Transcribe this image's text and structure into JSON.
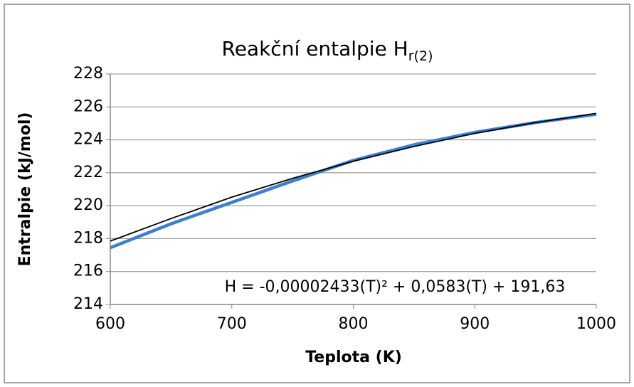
{
  "chart_data": {
    "type": "line",
    "title": "Reakční entalpie H",
    "title_subscript": "r(2)",
    "x_label": "Teplota (K)",
    "y_label": "Entralpie (kJ/mol)",
    "annotation": "H = -0,00002433(T)² + 0,0583(T) + 191,63",
    "x": [
      600,
      650,
      700,
      750,
      800,
      850,
      900,
      950,
      1000
    ],
    "series": [
      {
        "color": "#3d7fd0",
        "values": [
          217.45,
          218.9,
          220.2,
          221.5,
          222.75,
          223.7,
          224.45,
          225.05,
          225.55
        ]
      },
      {
        "color": "#000000",
        "values": [
          217.85,
          219.22,
          220.52,
          221.66,
          222.7,
          223.6,
          224.39,
          225.05,
          225.6
        ]
      }
    ],
    "xlim": [
      600,
      1000
    ],
    "xticks": [
      600,
      700,
      800,
      900,
      1000
    ],
    "ylim": [
      214,
      228
    ],
    "yticks": [
      214,
      216,
      218,
      220,
      222,
      224,
      226,
      228
    ],
    "grid": true
  }
}
